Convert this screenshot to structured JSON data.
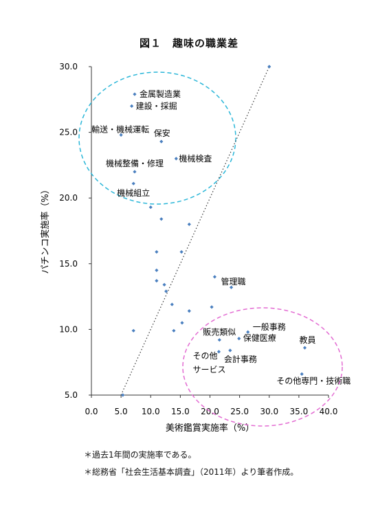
{
  "chart_data": {
    "type": "scatter",
    "title": "図１　趣味の職業差",
    "xlabel": "美術鑑賞実施率（%）",
    "ylabel": "パチンコ実施率（%）",
    "xlim": [
      0,
      40
    ],
    "ylim": [
      5,
      30
    ],
    "xticks": [
      "0.0",
      "5.0",
      "10.0",
      "15.0",
      "20.0",
      "25.0",
      "30.0",
      "35.0",
      "40.0"
    ],
    "yticks": [
      "5.0",
      "10.0",
      "15.0",
      "20.0",
      "25.0",
      "30.0"
    ],
    "grid": false,
    "reference_line": [
      [
        5.0,
        5.0
      ],
      [
        30.0,
        30.0
      ]
    ],
    "points": [
      {
        "x": 7.3,
        "y": 27.9,
        "label": "金属製造業"
      },
      {
        "x": 6.8,
        "y": 27.0,
        "label": "建設・採掘"
      },
      {
        "x": 5.0,
        "y": 24.8,
        "label": "輸送・機械運転"
      },
      {
        "x": 11.8,
        "y": 24.3,
        "label": "保安"
      },
      {
        "x": 14.3,
        "y": 23.0,
        "label": "機械検査"
      },
      {
        "x": 7.3,
        "y": 22.0,
        "label": "機械整備・修理"
      },
      {
        "x": 7.1,
        "y": 21.1,
        "label": "機械組立"
      },
      {
        "x": 10.0,
        "y": 19.3,
        "label": ""
      },
      {
        "x": 11.8,
        "y": 18.4,
        "label": ""
      },
      {
        "x": 16.5,
        "y": 18.0,
        "label": ""
      },
      {
        "x": 11.0,
        "y": 15.9,
        "label": ""
      },
      {
        "x": 15.2,
        "y": 15.9,
        "label": ""
      },
      {
        "x": 11.0,
        "y": 14.5,
        "label": ""
      },
      {
        "x": 11.0,
        "y": 13.7,
        "label": ""
      },
      {
        "x": 12.3,
        "y": 13.4,
        "label": ""
      },
      {
        "x": 12.6,
        "y": 12.9,
        "label": ""
      },
      {
        "x": 20.8,
        "y": 14.0,
        "label": ""
      },
      {
        "x": 23.6,
        "y": 13.2,
        "label": "管理職"
      },
      {
        "x": 13.6,
        "y": 11.9,
        "label": ""
      },
      {
        "x": 16.5,
        "y": 11.4,
        "label": ""
      },
      {
        "x": 20.3,
        "y": 11.7,
        "label": ""
      },
      {
        "x": 15.3,
        "y": 10.5,
        "label": ""
      },
      {
        "x": 13.9,
        "y": 9.9,
        "label": ""
      },
      {
        "x": 7.1,
        "y": 9.9,
        "label": ""
      },
      {
        "x": 26.4,
        "y": 9.8,
        "label": "一般事務"
      },
      {
        "x": 21.6,
        "y": 9.2,
        "label": "販売類似"
      },
      {
        "x": 24.9,
        "y": 9.3,
        "label": "保健医療"
      },
      {
        "x": 21.5,
        "y": 8.3,
        "label": "その他サービス"
      },
      {
        "x": 23.4,
        "y": 8.4,
        "label": "会計事務"
      },
      {
        "x": 36.0,
        "y": 8.6,
        "label": "教員"
      },
      {
        "x": 35.5,
        "y": 6.6,
        "label": "その他専門・技術職"
      },
      {
        "x": 5.3,
        "y": 5.0,
        "label": ""
      },
      {
        "x": 30.0,
        "y": 30.0,
        "label": ""
      }
    ],
    "notes": [
      "＊過去1年間の実施率である。",
      "＊総務省「社会生活基本調査」（2011年）より筆者作成。"
    ]
  },
  "colors": {
    "point": "#4a7fbf",
    "cyan_ellipse": "#29b6d8",
    "pink_ellipse": "#e36bd2",
    "axis": "#333333"
  }
}
